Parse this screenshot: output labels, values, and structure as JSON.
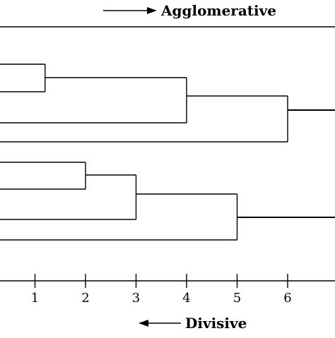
{
  "direction_top": {
    "label": "Agglomerative",
    "arrow": "right"
  },
  "direction_bottom": {
    "label": "Divisive",
    "arrow": "left"
  },
  "axis": {
    "ticks": [
      "1",
      "2",
      "3",
      "4",
      "5",
      "6"
    ]
  },
  "merges": [
    {
      "group": "A",
      "height": 1.2
    },
    {
      "group": "A",
      "height": 4
    },
    {
      "group": "A",
      "height": 6
    },
    {
      "group": "B",
      "height": 2
    },
    {
      "group": "B",
      "height": 3
    },
    {
      "group": "B",
      "height": 5
    }
  ],
  "colors": {
    "line": "#000000",
    "background": "#ffffff"
  }
}
